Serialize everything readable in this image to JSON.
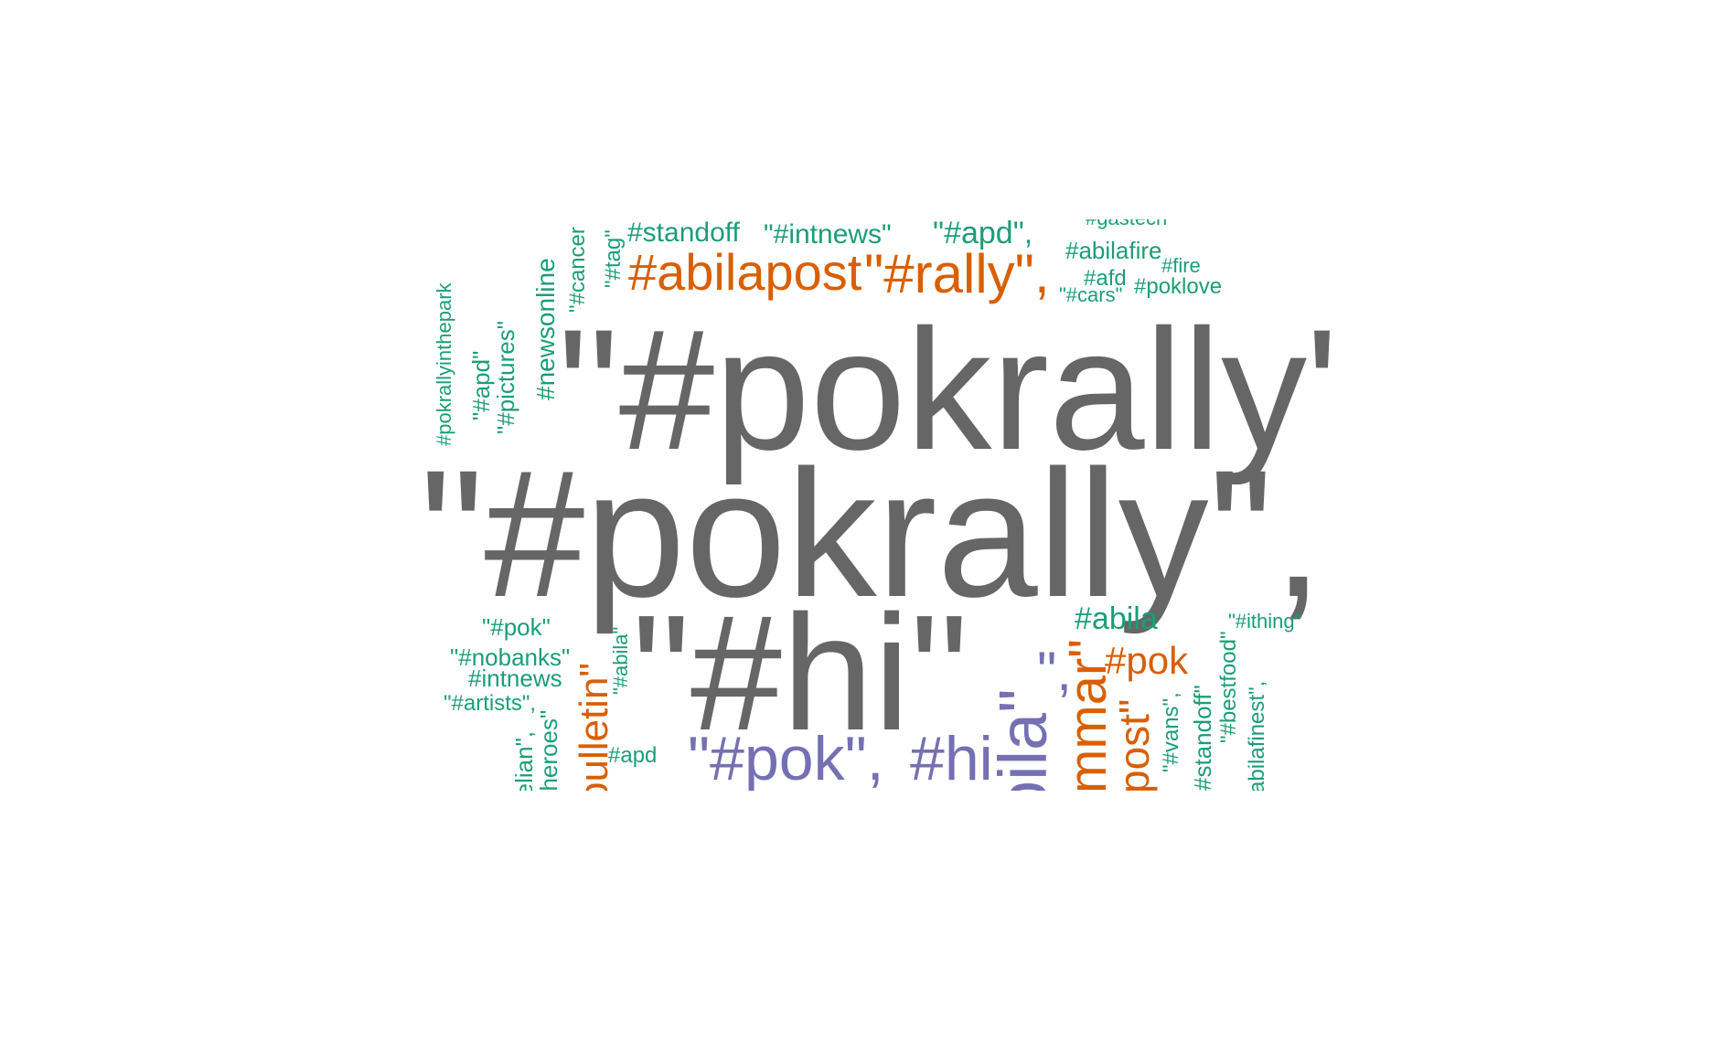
{
  "palette": {
    "dark_gray": "#666666",
    "orange": "#d95f02",
    "teal": "#1b9e77",
    "purple": "#7570b3",
    "background": "#ffffff"
  },
  "words": [
    "\"#pokrally\"",
    "\"#pokrally\",",
    "\"#hi\"",
    "#abilapost",
    "\"#rally\",",
    "\"#pok\",",
    "#hi",
    "bila\"",
    "\",",
    "mmar\"",
    "post\"",
    "bulletin\"",
    "#pok",
    "#abila",
    "#standoff",
    "\"#intnews\"",
    "\"#apd\",",
    "#gastech",
    "#abilafire",
    "#fire",
    "#afd",
    "#poklove",
    "\"#cars\"",
    "\"#tag\"",
    "\"#cancer",
    "#newsonline",
    "\"#pictures\"",
    "\"#apd\"",
    "#pokrallyinthepark",
    "\"#pok\"",
    "\"#nobanks\"",
    "#intnews",
    "\"#artists\",",
    "relian\",",
    "#heroes\"",
    "\"#abila\"",
    "#apd",
    "\"#vans\",",
    "#standoff\"",
    "\"#bestfood\"",
    "abilafinest\",",
    "\"#ithing\""
  ]
}
